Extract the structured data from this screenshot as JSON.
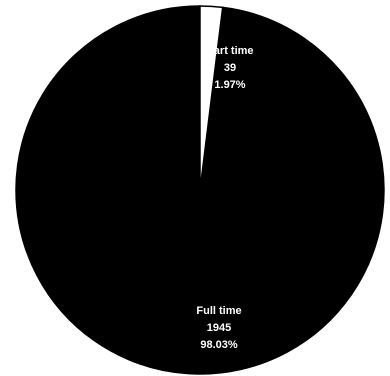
{
  "chart_data": {
    "type": "pie",
    "slices": [
      {
        "label": "Full time",
        "value": 1945,
        "percent": "98.03%",
        "color": "#000000"
      },
      {
        "label": "Part time",
        "value": 39,
        "percent": "1.97%",
        "color": "#ffffff"
      }
    ],
    "start_angle_deg": 0,
    "direction": "counterclockwise",
    "slice_edge_color": "#000000",
    "label_color": "#ffffff"
  }
}
